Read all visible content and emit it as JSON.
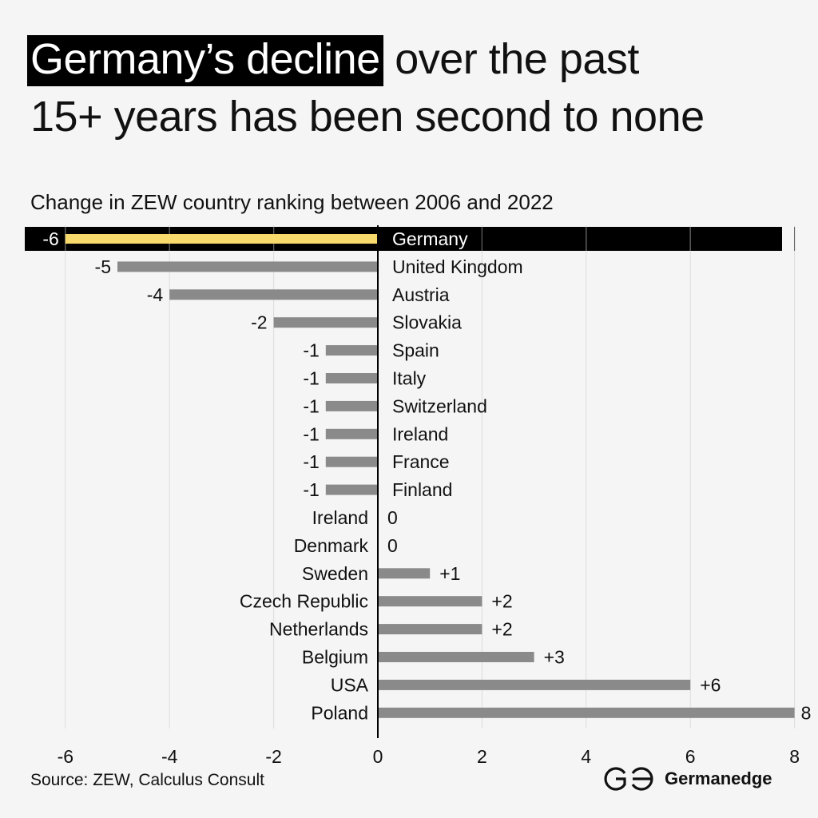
{
  "title": {
    "highlight": "Germany’s decline",
    "rest_line1": " over the past",
    "line2": "15+ years has been second to none"
  },
  "subtitle": "Change in ZEW country ranking between 2006 and 2022",
  "source": "Source: ZEW, Calculus Consult",
  "brand": {
    "name": "Germanedge",
    "icon": "germanedge-logo-icon"
  },
  "colors": {
    "highlight_bar": "#f8d96b",
    "bar": "#8a8a8a",
    "highlight_band": "#000000",
    "grid": "#dcdcdc",
    "axis": "#000000",
    "text": "#111111"
  },
  "chart_data": {
    "type": "bar",
    "orientation": "horizontal",
    "xlim": [
      -6.6,
      8
    ],
    "xticks": [
      -6,
      -4,
      -2,
      0,
      2,
      4,
      6,
      8
    ],
    "grid": true,
    "highlight": "Germany",
    "categories": [
      "Germany",
      "United Kingdom",
      "Austria",
      "Slovakia",
      "Spain",
      "Italy",
      "Switzerland",
      "Ireland",
      "France",
      "Finland",
      "Ireland",
      "Denmark",
      "Sweden",
      "Czech Republic",
      "Netherlands",
      "Belgium",
      "USA",
      "Poland"
    ],
    "values": [
      -6,
      -5,
      -4,
      -2,
      -1,
      -1,
      -1,
      -1,
      -1,
      -1,
      0,
      0,
      1,
      2,
      2,
      3,
      6,
      8
    ],
    "value_labels": [
      "-6",
      "-5",
      "-4",
      "-2",
      "-1",
      "-1",
      "-1",
      "-1",
      "-1",
      "-1",
      "0",
      "0",
      "+1",
      "+2",
      "+2",
      "+3",
      "+6",
      "8"
    ]
  }
}
